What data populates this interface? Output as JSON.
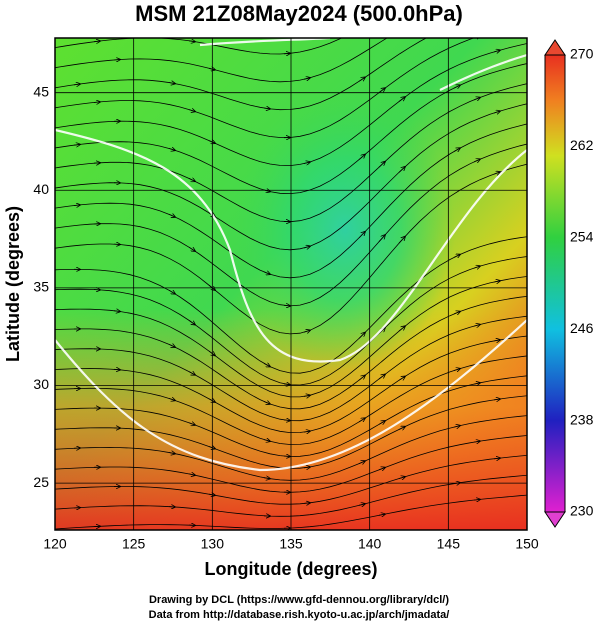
{
  "chart_data": {
    "type": "contour",
    "title": "MSM 21Z08May2024 (500.0hPa)",
    "xlabel": "Longitude (degrees)",
    "ylabel": "Latitude  (degrees)",
    "xlim": [
      120,
      150
    ],
    "xticks": [
      120,
      125,
      130,
      135,
      140,
      145,
      150
    ],
    "ylim": [
      22.6,
      47.8
    ],
    "yticks": [
      25,
      30,
      35,
      40,
      45
    ],
    "grid": true,
    "colorbar": {
      "lim": [
        230,
        270
      ],
      "ticks": [
        230,
        238,
        246,
        254,
        262,
        270
      ]
    }
  },
  "footer": [
    "Drawing by DCL (https://www.gfd-dennou.org/library/dcl/)",
    "Data from http://database.rish.kyoto-u.ac.jp/arch/jmadata/"
  ]
}
